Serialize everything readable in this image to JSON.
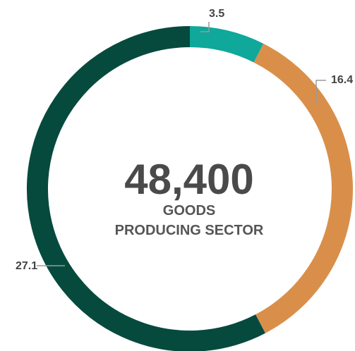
{
  "chart_data": {
    "type": "pie",
    "values": [
      3.5,
      16.4,
      27.1
    ],
    "colors": [
      "#0fa89a",
      "#d98f49",
      "#064a3e"
    ],
    "labels": [
      "3.5",
      "16.4",
      "27.1"
    ],
    "center_value": "48,400",
    "center_text_line1": "GOODS",
    "center_text_line2": "PRODUCING SECTOR"
  }
}
